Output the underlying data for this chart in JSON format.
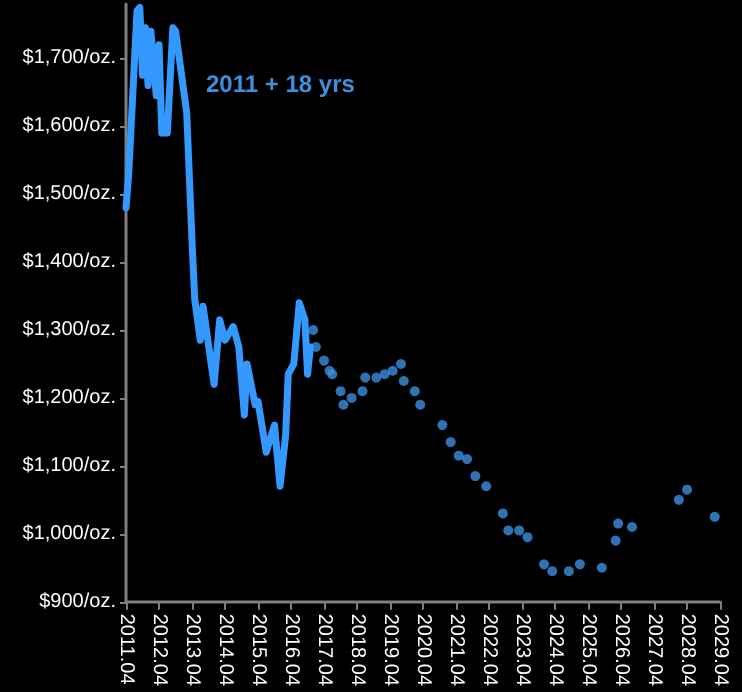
{
  "chart_data": {
    "type": "line",
    "annotations": [
      "2011 + 18 yrs"
    ],
    "xlim": [
      "2011-04",
      "2029-04"
    ],
    "xticks": [
      {
        "value": "2011-04",
        "label": "2011.04"
      },
      {
        "value": "2012-04",
        "label": "2012.04"
      },
      {
        "value": "2013-04",
        "label": "2013.04"
      },
      {
        "value": "2014-04",
        "label": "2014.04"
      },
      {
        "value": "2015-04",
        "label": "2015.04"
      },
      {
        "value": "2016-04",
        "label": "2016.04"
      },
      {
        "value": "2017-04",
        "label": "2017.04"
      },
      {
        "value": "2018-04",
        "label": "2018.04"
      },
      {
        "value": "2019-04",
        "label": "2019.04"
      },
      {
        "value": "2020-04",
        "label": "2020.04"
      },
      {
        "value": "2021-04",
        "label": "2021.04"
      },
      {
        "value": "2022-04",
        "label": "2022.04"
      },
      {
        "value": "2023-04",
        "label": "2023.04"
      },
      {
        "value": "2024-04",
        "label": "2024.04"
      },
      {
        "value": "2025-04",
        "label": "2025.04"
      },
      {
        "value": "2026-04",
        "label": "2026.04"
      },
      {
        "value": "2027-04",
        "label": "2027.04"
      },
      {
        "value": "2028-04",
        "label": "2028.04"
      },
      {
        "value": "2029-04",
        "label": "2029.04"
      }
    ],
    "ylim": [
      900,
      1780
    ],
    "yticks": [
      {
        "value": 900,
        "label": "$900/oz."
      },
      {
        "value": 1000,
        "label": "$1,000/oz."
      },
      {
        "value": 1100,
        "label": "$1,100/oz."
      },
      {
        "value": 1200,
        "label": "$1,200/oz."
      },
      {
        "value": 1300,
        "label": "$1,300/oz."
      },
      {
        "value": 1400,
        "label": "$1,400/oz."
      },
      {
        "value": 1500,
        "label": "$1,500/oz."
      },
      {
        "value": 1600,
        "label": "$1,600/oz."
      },
      {
        "value": 1700,
        "label": "$1,700/oz."
      }
    ],
    "grid": false,
    "series": [
      {
        "color": "#3399ff",
        "marker": "none",
        "line_style": "solid",
        "x": [
          "2011-04",
          "2011-05",
          "2011-08",
          "2011-09",
          "2011-10",
          "2011-11",
          "2011-12",
          "2012-01",
          "2012-03",
          "2012-04",
          "2012-05",
          "2012-07",
          "2012-09",
          "2012-10",
          "2013-02",
          "2013-04",
          "2013-05",
          "2013-07",
          "2013-08",
          "2013-12",
          "2014-02",
          "2014-04",
          "2014-07",
          "2014-09",
          "2014-11",
          "2014-12",
          "2015-03",
          "2015-04",
          "2015-07",
          "2015-10",
          "2015-12",
          "2016-02",
          "2016-03",
          "2016-05",
          "2016-07",
          "2016-09",
          "2016-10",
          "2016-11"
        ],
        "values": [
          1480,
          1530,
          1770,
          1775,
          1675,
          1745,
          1660,
          1740,
          1645,
          1720,
          1590,
          1590,
          1745,
          1740,
          1620,
          1430,
          1345,
          1285,
          1335,
          1220,
          1315,
          1285,
          1305,
          1275,
          1175,
          1250,
          1190,
          1195,
          1120,
          1160,
          1070,
          1145,
          1235,
          1250,
          1340,
          1315,
          1235,
          1275
        ]
      },
      {
        "type": "scatter",
        "color": "#3a8fe0",
        "marker": "circle",
        "x": [
          "2016-12",
          "2017-01",
          "2017-04",
          "2017-06",
          "2017-07",
          "2017-10",
          "2017-11",
          "2018-02",
          "2018-06",
          "2018-07",
          "2018-11",
          "2019-02",
          "2019-05",
          "2019-08",
          "2019-09",
          "2020-01",
          "2020-03",
          "2020-11",
          "2021-02",
          "2021-05",
          "2021-08",
          "2021-11",
          "2022-03",
          "2022-09",
          "2022-11",
          "2023-03",
          "2023-06",
          "2023-12",
          "2024-03",
          "2024-09",
          "2025-01",
          "2025-09",
          "2026-02",
          "2026-03",
          "2026-08",
          "2028-01",
          "2028-04",
          "2029-02"
        ],
        "values": [
          1300,
          1275,
          1255,
          1240,
          1235,
          1210,
          1190,
          1200,
          1210,
          1230,
          1230,
          1235,
          1240,
          1250,
          1225,
          1210,
          1190,
          1160,
          1135,
          1115,
          1110,
          1085,
          1070,
          1030,
          1005,
          1005,
          995,
          955,
          945,
          945,
          955,
          950,
          990,
          1015,
          1010,
          1050,
          1065,
          1025
        ]
      }
    ]
  }
}
